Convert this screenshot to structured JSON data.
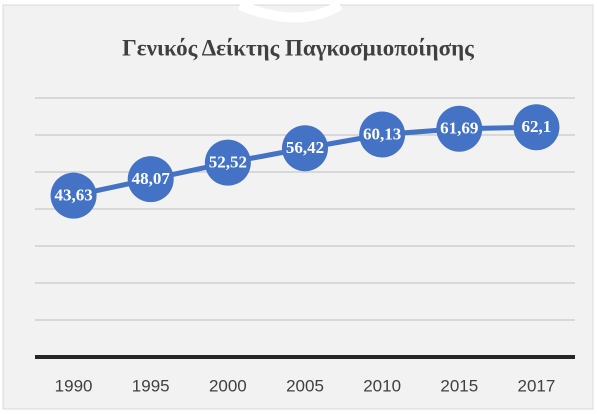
{
  "chart_data": {
    "type": "line",
    "title": "Γενικός Δείκτης Παγκοσμιοποίησης",
    "categories": [
      "1990",
      "1995",
      "2000",
      "2005",
      "2010",
      "2015",
      "2017"
    ],
    "values": [
      43.63,
      48.07,
      52.52,
      56.42,
      60.13,
      61.69,
      62.1
    ],
    "value_labels": [
      "43,63",
      "48,07",
      "52,52",
      "56,42",
      "60,13",
      "61,69",
      "62,1"
    ],
    "color": "#4472c4",
    "ylim": [
      0,
      70
    ],
    "yticks": [
      0,
      10,
      20,
      30,
      40,
      50,
      60,
      70
    ],
    "grid": true
  }
}
